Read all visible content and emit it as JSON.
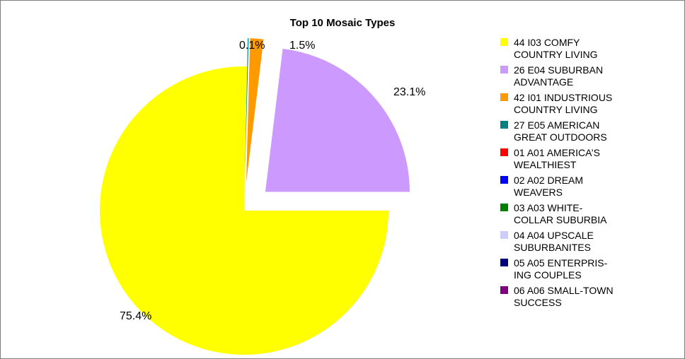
{
  "chart_data": {
    "type": "pie",
    "title": "Top 10 Mosaic Types",
    "slices": [
      {
        "label": "44 I03 COMFY COUNTRY LIVING",
        "value": 75.4,
        "data_label": "75.4%",
        "color": "#FFFF00"
      },
      {
        "label": "26 E04 SUBURBAN ADVANTAGE",
        "value": 23.1,
        "data_label": "23.1%",
        "color": "#CC99FF"
      },
      {
        "label": "42 I01 INDUSTRIOUS COUNTRY LIVING",
        "value": 1.5,
        "data_label": "1.5%",
        "color": "#FF9900"
      },
      {
        "label": "27 E05 AMERICAN GREAT OUTDOORS",
        "value": 0.1,
        "data_label": "0.1%",
        "color": "#008080"
      },
      {
        "label": "01 A01 AMERICA'S WEALTHIEST",
        "value": 0,
        "data_label": "",
        "color": "#FF0000"
      },
      {
        "label": "02 A02 DREAM WEAVERS",
        "value": 0,
        "data_label": "",
        "color": "#0000FF"
      },
      {
        "label": "03 A03 WHITE-COLLAR SUBURBIA",
        "value": 0,
        "data_label": "",
        "color": "#008000"
      },
      {
        "label": "04 A04 UPSCALE SUBURBANITES",
        "value": 0,
        "data_label": "",
        "color": "#CCCCFF"
      },
      {
        "label": "05 A05 ENTERPRISING COUPLES",
        "value": 0,
        "data_label": "",
        "color": "#000080"
      },
      {
        "label": "06 A06 SMALL-TOWN SUCCESS",
        "value": 0,
        "data_label": "",
        "color": "#800080"
      }
    ],
    "legend_position": "right"
  },
  "legend_lines": [
    [
      "44 I03 COMFY",
      "COUNTRY LIVING"
    ],
    [
      "26 E04 SUBURBAN",
      "ADVANTAGE"
    ],
    [
      "42 I01 INDUSTRIOUS",
      "COUNTRY LIVING"
    ],
    [
      "27 E05 AMERICAN",
      "GREAT OUTDOORS"
    ],
    [
      "01 A01 AMERICA’S",
      "WEALTHIEST"
    ],
    [
      "02 A02 DREAM",
      "WEAVERS"
    ],
    [
      "03 A03 WHITE-",
      "COLLAR SUBURBIA"
    ],
    [
      "04 A04 UPSCALE",
      "SUBURBANITES"
    ],
    [
      "05 A05 ENTERPRIS-",
      "ING COUPLES"
    ],
    [
      "06 A06 SMALL-TOWN",
      "SUCCESS"
    ]
  ]
}
